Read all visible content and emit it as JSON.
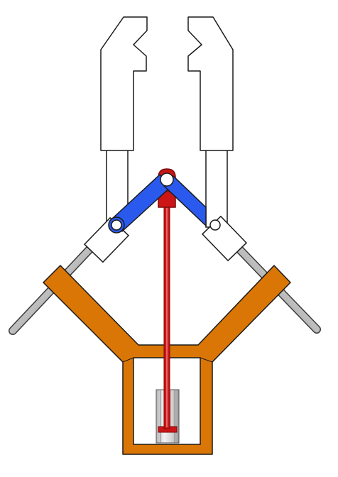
{
  "diagram": {
    "subject": "gripper-mechanism",
    "colors": {
      "frame": "#d97606",
      "linkage": "#2a59ee",
      "actuator": "#cc1616",
      "actuator_dark": "#8e0a0a",
      "finger_fill": "#ffffff",
      "outline": "#1a1a1a",
      "rod_light": "#f2f2f2",
      "rod_dark": "#7a7a7a",
      "cylinder_glass": "#e6e6e6"
    },
    "icons": [
      "jaw-icon",
      "pin-joint-icon",
      "guide-rod-icon",
      "piston-icon"
    ]
  }
}
